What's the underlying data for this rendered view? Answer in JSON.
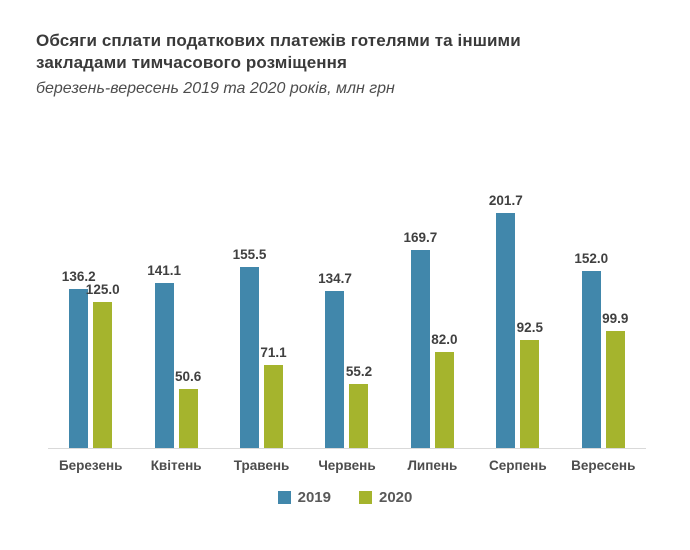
{
  "header": {
    "title_line1": "Обсяги сплати податкових платежів готелями та іншими",
    "title_line2": "закладами тимчасового розміщення",
    "subtitle": "березень-вересень 2019 та 2020 років, млн грн"
  },
  "chart_data": {
    "type": "bar",
    "title": "Обсяги сплати податкових платежів готелями та іншими закладами тимчасового розміщення",
    "subtitle": "березень-вересень 2019 та 2020 років, млн грн",
    "categories": [
      "Березень",
      "Квітень",
      "Травень",
      "Червень",
      "Липень",
      "Серпень",
      "Вересень"
    ],
    "series": [
      {
        "name": "2019",
        "color": "#4187ab",
        "values": [
          136.2,
          141.1,
          155.5,
          134.7,
          169.7,
          201.7,
          152.0
        ]
      },
      {
        "name": "2020",
        "color": "#a5b42d",
        "values": [
          125.0,
          50.6,
          71.1,
          55.2,
          82.0,
          92.5,
          99.9
        ]
      }
    ],
    "xlabel": "",
    "ylabel": "",
    "units": "млн грн",
    "ylim": [
      0,
      220
    ],
    "grid": false,
    "value_labels": true,
    "value_label_decimals": 1,
    "legend_position": "bottom",
    "axis_line_color": "#d9d9d9"
  },
  "colors": {
    "series_2019": "#4187ab",
    "series_2020": "#a5b42d",
    "title_text": "#3a3a3a",
    "subtitle_text": "#4d4d4d",
    "value_label_text": "#404040",
    "month_label_text": "#4d4d4d",
    "legend_text": "#595959"
  }
}
